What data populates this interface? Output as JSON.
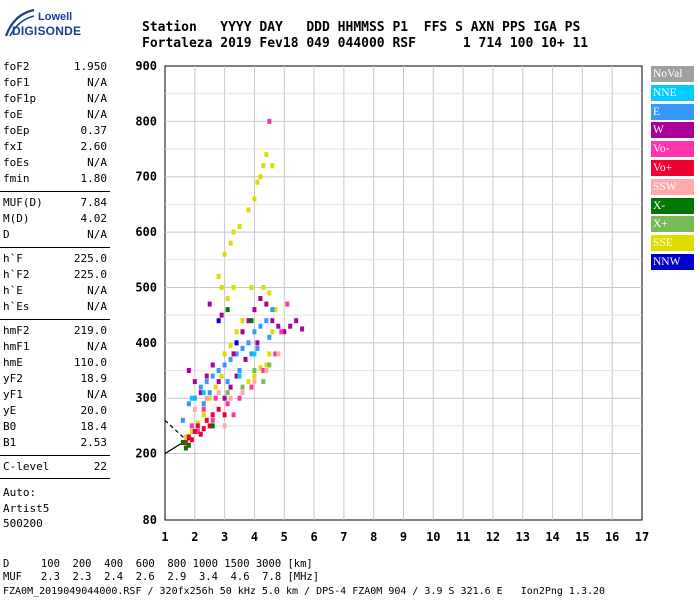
{
  "logo": {
    "line1": "Lowell",
    "line2": "DIGISONDE"
  },
  "header": {
    "line1": "Station   YYYY DAY   DDD HHMMSS P1  FFS S AXN PPS IGA PS",
    "line2": "Fortaleza 2019 Fev18 049 044000 RSF      1 714 100 10+ 11"
  },
  "params": [
    {
      "k": "foF2",
      "v": "1.950"
    },
    {
      "k": "foF1",
      "v": "N/A"
    },
    {
      "k": "foF1p",
      "v": "N/A"
    },
    {
      "k": "foE",
      "v": "N/A"
    },
    {
      "k": "foEp",
      "v": "0.37"
    },
    {
      "k": "fxI",
      "v": "2.60"
    },
    {
      "k": "foEs",
      "v": "N/A"
    },
    {
      "k": "fmin",
      "v": "1.80"
    },
    {
      "k": "MUF(D)",
      "v": "7.84"
    },
    {
      "k": "M(D)",
      "v": "4.02"
    },
    {
      "k": "D",
      "v": "N/A"
    },
    {
      "k": "h`F",
      "v": "225.0"
    },
    {
      "k": "h`F2",
      "v": "225.0"
    },
    {
      "k": "h`E",
      "v": "N/A"
    },
    {
      "k": "h`Es",
      "v": "N/A"
    },
    {
      "k": "hmF2",
      "v": "219.0"
    },
    {
      "k": "hmF1",
      "v": "N/A"
    },
    {
      "k": "hmE",
      "v": "110.0"
    },
    {
      "k": "yF2",
      "v": "18.9"
    },
    {
      "k": "yF1",
      "v": "N/A"
    },
    {
      "k": "yE",
      "v": "20.0"
    },
    {
      "k": "B0",
      "v": "18.4"
    },
    {
      "k": "B1",
      "v": "2.53"
    },
    {
      "k": "C-level",
      "v": "22"
    }
  ],
  "notes": {
    "auto": "Auto:",
    "artist": "Artist5",
    "code": "500200"
  },
  "bottom": {
    "d_row": "D     100  200  400  600  800 1000 1500 3000 [km]",
    "muf_row": "MUF   2.3  2.3  2.4  2.6  2.9  3.4  4.6  7.8 [MHz]",
    "footer": "FZA0M_2019049044000.RSF / 320fx256h 50 kHz 5.0 km / DPS-4 FZA0M 904 / 3.9 S 321.6 E   Ion2Png 1.3.20"
  },
  "legend": [
    {
      "label": "NoVal",
      "color": "#a0a0a0"
    },
    {
      "label": "NNE",
      "color": "#00ccff"
    },
    {
      "label": "E",
      "color": "#3399ff"
    },
    {
      "label": "W",
      "color": "#aa0099"
    },
    {
      "label": "Vo-",
      "color": "#ff33aa"
    },
    {
      "label": "Vo+",
      "color": "#ee0033"
    },
    {
      "label": "SSW",
      "color": "#ffaaaa"
    },
    {
      "label": "X-",
      "color": "#007700"
    },
    {
      "label": "X+",
      "color": "#77bb55"
    },
    {
      "label": "SSE",
      "color": "#dddd00"
    },
    {
      "label": "NNW",
      "color": "#0000cc"
    }
  ],
  "chart_data": {
    "type": "scatter",
    "xlim": [
      1,
      17
    ],
    "ylim": [
      80,
      900
    ],
    "xticks": [
      "1",
      "2",
      "3",
      "4",
      "5",
      "6",
      "7",
      "8",
      "9",
      "10",
      "11",
      "12",
      "13",
      "14",
      "15",
      "16",
      "17"
    ],
    "yticks": [
      "80",
      "200",
      "300",
      "400",
      "500",
      "600",
      "700",
      "800",
      "900"
    ],
    "grid": true,
    "legend_position": "right",
    "series": [
      {
        "name": "SSE",
        "color": "#dddd00",
        "points": [
          [
            1.7,
            230
          ],
          [
            1.9,
            240
          ],
          [
            2.1,
            255
          ],
          [
            2.3,
            270
          ],
          [
            2.5,
            300
          ],
          [
            2.7,
            320
          ],
          [
            2.9,
            340
          ],
          [
            3.0,
            380
          ],
          [
            3.2,
            395
          ],
          [
            3.4,
            420
          ],
          [
            3.6,
            440
          ],
          [
            3.8,
            330
          ],
          [
            4.0,
            340
          ],
          [
            4.2,
            355
          ],
          [
            4.4,
            360
          ],
          [
            4.5,
            380
          ],
          [
            4.6,
            420
          ],
          [
            4.7,
            460
          ],
          [
            3.0,
            560
          ],
          [
            3.2,
            580
          ],
          [
            3.3,
            600
          ],
          [
            3.5,
            610
          ],
          [
            3.8,
            640
          ],
          [
            4.0,
            660
          ],
          [
            4.1,
            690
          ],
          [
            4.2,
            700
          ],
          [
            4.3,
            720
          ],
          [
            4.4,
            740
          ],
          [
            4.6,
            720
          ],
          [
            2.8,
            520
          ],
          [
            2.9,
            500
          ],
          [
            3.1,
            480
          ],
          [
            3.3,
            500
          ],
          [
            3.9,
            500
          ],
          [
            4.3,
            500
          ],
          [
            4.5,
            490
          ]
        ]
      },
      {
        "name": "E",
        "color": "#3399ff",
        "points": [
          [
            1.6,
            260
          ],
          [
            1.8,
            290
          ],
          [
            2.0,
            300
          ],
          [
            2.2,
            320
          ],
          [
            2.4,
            330
          ],
          [
            2.6,
            340
          ],
          [
            2.8,
            350
          ],
          [
            3.0,
            360
          ],
          [
            3.2,
            370
          ],
          [
            3.4,
            380
          ],
          [
            3.6,
            390
          ],
          [
            3.8,
            400
          ],
          [
            4.0,
            420
          ],
          [
            4.2,
            430
          ],
          [
            4.4,
            440
          ],
          [
            4.6,
            460
          ],
          [
            2.3,
            290
          ],
          [
            2.5,
            310
          ],
          [
            3.1,
            330
          ],
          [
            3.5,
            350
          ],
          [
            3.9,
            380
          ],
          [
            4.1,
            390
          ],
          [
            4.5,
            410
          ]
        ]
      },
      {
        "name": "W",
        "color": "#aa0099",
        "points": [
          [
            1.8,
            350
          ],
          [
            2.0,
            330
          ],
          [
            2.2,
            310
          ],
          [
            2.4,
            340
          ],
          [
            2.6,
            360
          ],
          [
            2.8,
            330
          ],
          [
            3.0,
            300
          ],
          [
            3.2,
            320
          ],
          [
            3.4,
            340
          ],
          [
            3.6,
            420
          ],
          [
            3.8,
            440
          ],
          [
            4.0,
            460
          ],
          [
            4.2,
            480
          ],
          [
            4.4,
            470
          ],
          [
            4.6,
            440
          ],
          [
            4.8,
            430
          ],
          [
            5.0,
            420
          ],
          [
            5.2,
            430
          ],
          [
            5.4,
            440
          ],
          [
            5.6,
            425
          ],
          [
            2.5,
            470
          ],
          [
            2.9,
            450
          ],
          [
            3.3,
            380
          ],
          [
            3.7,
            370
          ],
          [
            4.1,
            400
          ]
        ]
      },
      {
        "name": "Vo-",
        "color": "#ff33aa",
        "points": [
          [
            1.9,
            250
          ],
          [
            2.1,
            240
          ],
          [
            2.3,
            280
          ],
          [
            2.7,
            300
          ],
          [
            3.1,
            290
          ],
          [
            3.5,
            300
          ],
          [
            3.9,
            320
          ],
          [
            4.3,
            350
          ],
          [
            4.7,
            380
          ],
          [
            4.9,
            420
          ],
          [
            5.1,
            470
          ],
          [
            4.5,
            800
          ],
          [
            3.3,
            270
          ],
          [
            2.6,
            260
          ]
        ]
      },
      {
        "name": "Vo+",
        "color": "#ee0033",
        "points": [
          [
            1.7,
            220
          ],
          [
            1.9,
            225
          ],
          [
            2.0,
            240
          ],
          [
            2.1,
            250
          ],
          [
            2.2,
            235
          ],
          [
            2.4,
            260
          ],
          [
            2.5,
            250
          ],
          [
            2.6,
            270
          ],
          [
            2.8,
            280
          ],
          [
            3.0,
            270
          ],
          [
            2.3,
            245
          ],
          [
            1.8,
            230
          ]
        ]
      },
      {
        "name": "SSW",
        "color": "#ffaaaa",
        "points": [
          [
            2.0,
            280
          ],
          [
            2.4,
            300
          ],
          [
            2.8,
            310
          ],
          [
            3.2,
            300
          ],
          [
            3.6,
            310
          ],
          [
            4.0,
            330
          ],
          [
            4.4,
            350
          ],
          [
            4.8,
            380
          ],
          [
            3.0,
            250
          ]
        ]
      },
      {
        "name": "X-",
        "color": "#007700",
        "points": [
          [
            1.6,
            220
          ],
          [
            1.7,
            210
          ],
          [
            1.8,
            215
          ],
          [
            2.6,
            250
          ],
          [
            3.1,
            460
          ],
          [
            3.9,
            440
          ]
        ]
      },
      {
        "name": "X+",
        "color": "#77bb55",
        "points": [
          [
            3.1,
            310
          ],
          [
            3.6,
            320
          ],
          [
            4.0,
            350
          ],
          [
            4.3,
            330
          ],
          [
            4.5,
            360
          ]
        ]
      },
      {
        "name": "NNE",
        "color": "#00ccff",
        "points": [
          [
            1.9,
            300
          ],
          [
            2.3,
            310
          ],
          [
            3.5,
            340
          ],
          [
            4.0,
            380
          ]
        ]
      },
      {
        "name": "NNW",
        "color": "#0000cc",
        "points": [
          [
            2.8,
            440
          ],
          [
            3.4,
            400
          ]
        ]
      }
    ],
    "trace": [
      [
        1.0,
        200
      ],
      [
        1.3,
        210
      ],
      [
        1.6,
        220
      ],
      [
        1.9,
        228
      ]
    ],
    "trace_dashed": [
      [
        1.0,
        260
      ],
      [
        1.3,
        245
      ],
      [
        1.7,
        225
      ]
    ]
  }
}
